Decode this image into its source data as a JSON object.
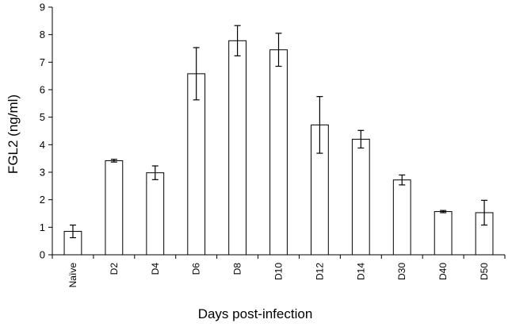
{
  "chart_data": {
    "type": "bar",
    "categories": [
      "Naïve",
      "D2",
      "D4",
      "D6",
      "D8",
      "D10",
      "D12",
      "D14",
      "D30",
      "D40",
      "D50"
    ],
    "series": [
      {
        "values": [
          0.85,
          3.42,
          2.98,
          6.58,
          7.78,
          7.45,
          4.72,
          4.2,
          2.72,
          1.57,
          1.53
        ],
        "errors": [
          0.23,
          0.05,
          0.25,
          0.95,
          0.55,
          0.6,
          1.03,
          0.32,
          0.18,
          0.04,
          0.45
        ]
      }
    ],
    "xlabel": "Days post-infection",
    "ylabel": "FGL2 (ng/ml)",
    "ylim": [
      0,
      9
    ],
    "yticks": [
      0,
      1,
      2,
      3,
      4,
      5,
      6,
      7,
      8,
      9
    ],
    "grid": false,
    "bar_fill": "#ffffff",
    "bar_stroke": "#000000"
  }
}
